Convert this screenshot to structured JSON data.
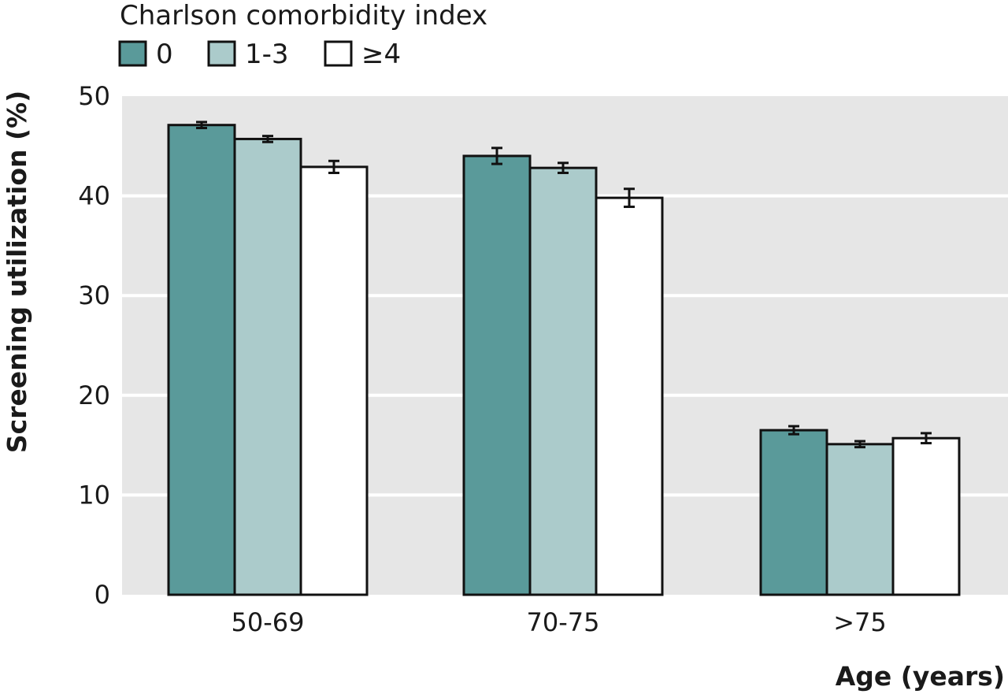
{
  "chart_data": {
    "type": "bar",
    "legend_title": "Charlson comorbidity index",
    "legend_position": "top-left",
    "xlabel": "Age (years)",
    "ylabel": "Screening utilization (%)",
    "ylim": [
      0,
      50
    ],
    "yticks": [
      0,
      10,
      20,
      30,
      40,
      50
    ],
    "grid": true,
    "categories": [
      "50-69",
      "70-75",
      ">75"
    ],
    "series": [
      {
        "name": "0",
        "color": "#5a9a9a",
        "values": [
          47.1,
          44.0,
          16.5
        ],
        "error": [
          0.3,
          0.8,
          0.4
        ]
      },
      {
        "name": "1-3",
        "color": "#abcbcb",
        "values": [
          45.7,
          42.8,
          15.1
        ],
        "error": [
          0.3,
          0.5,
          0.3
        ]
      },
      {
        "name": "≥4",
        "color": "#ffffff",
        "values": [
          42.9,
          39.8,
          15.7
        ],
        "error": [
          0.6,
          0.9,
          0.5
        ]
      }
    ]
  }
}
